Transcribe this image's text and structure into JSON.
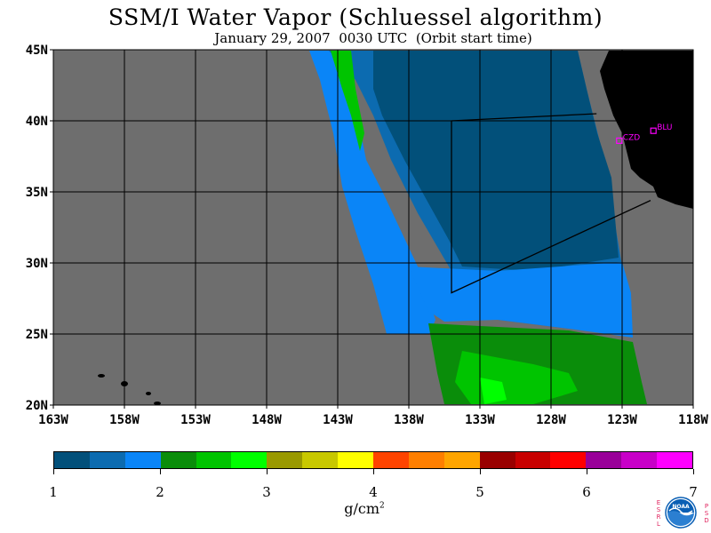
{
  "title": "SSM/I Water Vapor (Schluessel algorithm)",
  "subtitle": "January 29, 2007  0030 UTC  (Orbit start time)",
  "map": {
    "lat_labels": [
      "45N",
      "40N",
      "35N",
      "30N",
      "25N",
      "20N"
    ],
    "lon_labels": [
      "163W",
      "158W",
      "153W",
      "148W",
      "143W",
      "138W",
      "133W",
      "128W",
      "123W",
      "118W"
    ],
    "lat_range": [
      20,
      45
    ],
    "lon_range": [
      -163,
      -118
    ],
    "stations": [
      {
        "label": "CZD",
        "lat": 38.6,
        "lon": -123.2
      },
      {
        "label": "BLU",
        "lat": 39.3,
        "lon": -120.8
      }
    ],
    "colors": {
      "no_data": "#6e6e6e",
      "land": "#000000",
      "station": "#ff00ff",
      "grid": "#000000"
    }
  },
  "colorbar": {
    "colors": [
      "#02507a",
      "#0c6bb0",
      "#0a85f7",
      "#0a8d0a",
      "#00c400",
      "#00ff00",
      "#999900",
      "#c8c800",
      "#ffff00",
      "#ff4400",
      "#ff7f00",
      "#ffa500",
      "#990000",
      "#c80000",
      "#ff0000",
      "#990099",
      "#c800c8",
      "#ff00ff"
    ],
    "labels": [
      "1",
      "2",
      "3",
      "4",
      "5",
      "6",
      "7"
    ],
    "units": "g/cm",
    "units_sup": "2"
  },
  "logo": {
    "name": "NOAA",
    "left_letters": "ESRL",
    "right_letters": "PSD"
  }
}
